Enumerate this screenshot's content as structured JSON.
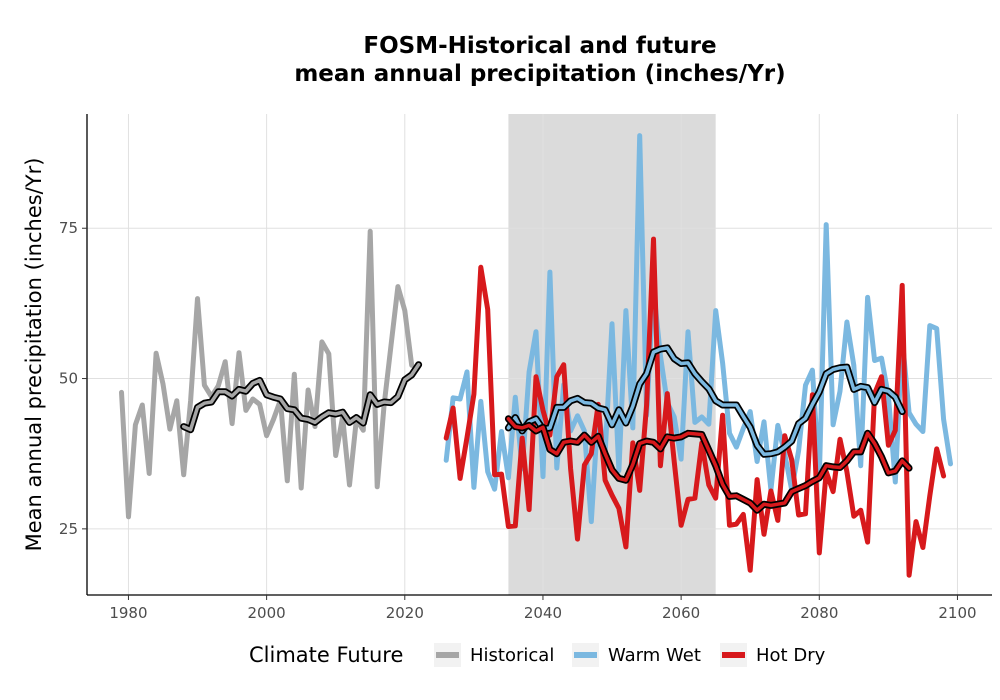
{
  "chart_data": {
    "type": "line",
    "title": [
      "FOSM-Historical and future",
      "mean annual precipitation (inches/Yr)"
    ],
    "xlabel": "",
    "ylabel": "Mean annual precipitation (inches/Yr)",
    "xlim": [
      1974,
      2105
    ],
    "ylim": [
      14,
      94
    ],
    "x_ticks": [
      1980,
      2000,
      2020,
      2040,
      2060,
      2080,
      2100
    ],
    "y_ticks": [
      25,
      50,
      75
    ],
    "grid": true,
    "shaded_period": [
      2035,
      2065
    ],
    "legend": {
      "title": "Climate Future",
      "placement": "bottom",
      "entries": [
        "Historical",
        "Warm Wet",
        "Hot Dry"
      ]
    },
    "series": [
      {
        "name": "Historical",
        "color": "#a6a6a6",
        "x_start": 1979,
        "values": [
          47.7,
          27,
          42.3,
          45.6,
          34.2,
          54.2,
          49.1,
          41.6,
          46.3,
          34,
          46.3,
          63.3,
          48.9,
          47,
          48.8,
          52.8,
          42.5,
          54.3,
          44.7,
          46.6,
          45.7,
          40.5,
          43.2,
          46.4,
          33,
          50.7,
          31.8,
          48.1,
          42,
          56.1,
          54.1,
          37.2,
          43.6,
          32.3,
          43.2,
          41.4,
          74.5,
          32,
          45.6,
          55.5,
          65.3,
          61.3,
          52.2
        ]
      },
      {
        "name": "Warm Wet",
        "color": "#7bb8e0",
        "x_start": 2026,
        "values": [
          36.4,
          46.8,
          46.6,
          51.1,
          31.9,
          46.2,
          34.5,
          31.6,
          41.2,
          33.5,
          46.9,
          35,
          51.1,
          57.8,
          33.7,
          67.7,
          35.1,
          49,
          41.3,
          43.8,
          41.3,
          26.2,
          44.6,
          37.5,
          59.1,
          34.7,
          61.3,
          41.8,
          90.4,
          43.9,
          65,
          53.8,
          46,
          43.6,
          36.6,
          57.8,
          42.7,
          43.6,
          42.4,
          61.3,
          52.6,
          40.9,
          38.6,
          41.7,
          44.5,
          36.2,
          42.8,
          31.5,
          42.2,
          37.5,
          31.5,
          38,
          48.9,
          51.4,
          33.5,
          75.6,
          42.3,
          47.9,
          59.4,
          52.2,
          35.5,
          63.5,
          53,
          53.4,
          47.1,
          32.8,
          56.7,
          44.3,
          42.4,
          41.2,
          58.8,
          58.3,
          43.2,
          35.8
        ]
      },
      {
        "name": "Hot Dry",
        "color": "#d7191c",
        "x_start": 2026,
        "values": [
          40.1,
          45.1,
          33.4,
          40.2,
          47.4,
          68.5,
          61.5,
          34,
          34.1,
          25.4,
          25.5,
          40.1,
          28.2,
          50.3,
          44.7,
          40.6,
          50.3,
          52.3,
          35,
          23.3,
          35.6,
          37.5,
          45.7,
          33.1,
          30.6,
          28.4,
          22,
          39.3,
          31.4,
          45.6,
          73.2,
          35.5,
          47.5,
          36.2,
          25.6,
          29.9,
          30.1,
          39.3,
          32.3,
          30.1,
          43.9,
          25.6,
          25.8,
          27.4,
          18.1,
          33.2,
          24.1,
          31.3,
          26.4,
          40.5,
          36.5,
          27.3,
          27.5,
          47.3,
          21,
          34.5,
          31.2,
          39.9,
          34.5,
          27.1,
          28.1,
          22.8,
          47.5,
          50.3,
          38.9,
          41.4,
          65.5,
          17.3,
          26.2,
          21.9,
          30.5,
          38.3,
          33.8
        ]
      },
      {
        "name": "",
        "color": "#000000",
        "role": "moving-average",
        "of": "Historical",
        "x_start": 1988,
        "values": [
          42,
          41.5,
          45.2,
          45.9,
          46.1,
          47.8,
          47.8,
          47.1,
          48.2,
          47.9,
          49.2,
          49.7,
          47.3,
          46.9,
          46.6,
          45,
          44.8,
          43.4,
          43.2,
          42.7,
          43.6,
          44.3,
          44.1,
          44.4,
          42.7,
          43.5,
          42.6,
          47.3,
          45.7,
          46.1,
          46,
          47,
          49.8,
          50.6,
          52.3
        ]
      },
      {
        "name": "",
        "color": "#000000",
        "role": "moving-average",
        "of": "Warm Wet",
        "x_start": 2035,
        "values": [
          41.8,
          43.5,
          41.3,
          42.8,
          43.3,
          41.6,
          41.8,
          45.2,
          45.2,
          46.3,
          46.7,
          46,
          45.9,
          45.1,
          44.8,
          42.3,
          44.8,
          42.6,
          45.4,
          49.1,
          50.8,
          54.4,
          54.9,
          55.1,
          53.3,
          52.5,
          52.6,
          50.8,
          49.5,
          48.3,
          46.3,
          45.6,
          45.6,
          45.6,
          43.7,
          41.9,
          38.9,
          37.4,
          37.5,
          37.8,
          38.6,
          39.6,
          42.5,
          43.4,
          45.7,
          47.8,
          50.8,
          51.5,
          51.8,
          51.9,
          48.2,
          48.7,
          48.5,
          46,
          48.2,
          47.9,
          46.9,
          44.5
        ]
      },
      {
        "name": "",
        "color": "#000000",
        "role": "moving-average",
        "of": "Hot Dry",
        "x_start": 2035,
        "values": [
          43.3,
          42,
          41.8,
          42.2,
          41.3,
          41.9,
          38.2,
          37.5,
          39.4,
          39.6,
          39.4,
          40.6,
          39.4,
          40.4,
          37.5,
          34.8,
          33.4,
          33.1,
          35.7,
          39.2,
          39.6,
          39.4,
          38.3,
          40.3,
          40.1,
          40.3,
          40.9,
          40.8,
          40.7,
          38.1,
          35.5,
          32.4,
          30.4,
          30.5,
          29.9,
          29.3,
          28.1,
          29.1,
          28.9,
          29.1,
          29.3,
          31.2,
          31.7,
          32.2,
          32.9,
          33.5,
          35.5,
          35.3,
          35.2,
          36.3,
          37.8,
          37.8,
          40.9,
          39.2,
          37,
          34.3,
          34.6,
          36.3,
          35.1
        ]
      }
    ]
  }
}
